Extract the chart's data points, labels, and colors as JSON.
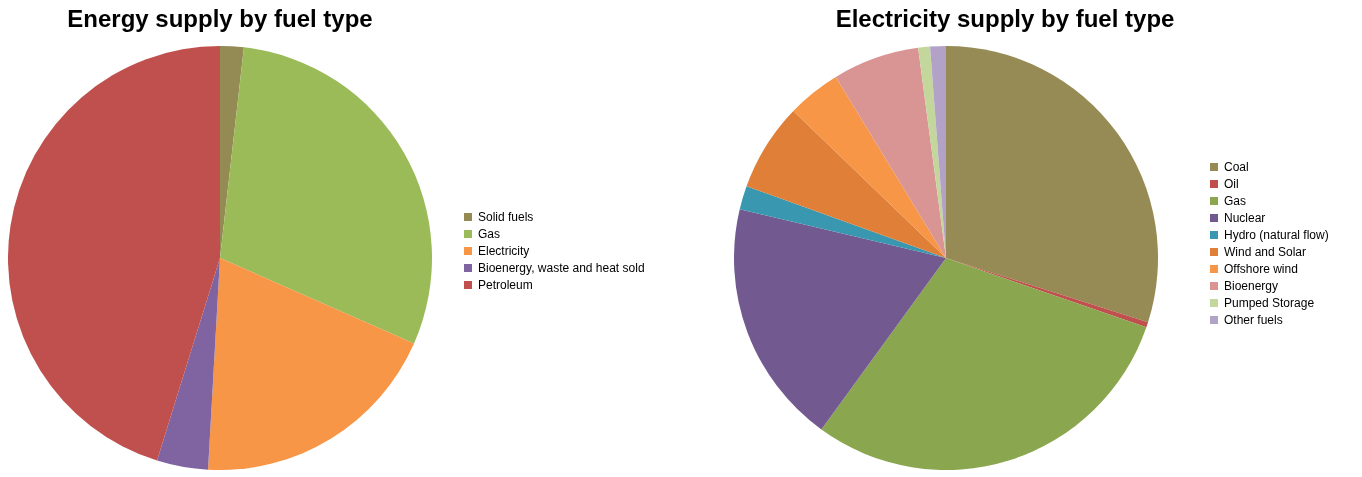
{
  "chart_data": [
    {
      "type": "pie",
      "title": "Energy supply by fuel type",
      "categories": [
        "Solid fuels",
        "Gas",
        "Electricity",
        "Bioenergy, waste and heat sold",
        "Petroleum"
      ],
      "values": [
        1.8,
        29.8,
        19.3,
        3.9,
        45.2
      ],
      "colors": [
        "#948a54",
        "#9bbb59",
        "#f79646",
        "#8064a2",
        "#c0504d"
      ],
      "legend": "right"
    },
    {
      "type": "pie",
      "title": "Electricity supply by fuel type",
      "categories": [
        "Coal",
        "Oil",
        "Gas",
        "Nuclear",
        "Hydro (natural flow)",
        "Wind and Solar",
        "Offshore wind",
        "Bioenergy",
        "Pumped Storage",
        "Other fuels"
      ],
      "values": [
        29.9,
        0.4,
        29.7,
        18.7,
        1.8,
        6.7,
        4.1,
        6.6,
        0.9,
        1.2
      ],
      "colors": [
        "#968b54",
        "#c0504d",
        "#8aa64f",
        "#725990",
        "#3a97b0",
        "#e07f38",
        "#f79646",
        "#d99594",
        "#c3d69b",
        "#b3a2c7"
      ],
      "legend": "right"
    }
  ]
}
